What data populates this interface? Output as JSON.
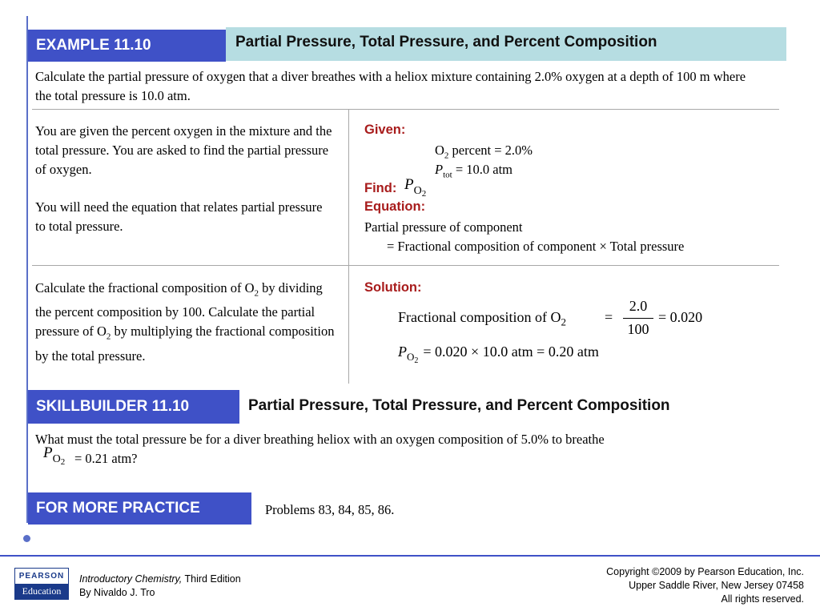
{
  "example": {
    "label": "EXAMPLE 11.10",
    "title": "Partial Pressure, Total Pressure, and Percent Composition",
    "problem": "Calculate the partial pressure of oxygen that a diver breathes with a heliox mixture containing 2.0% oxygen at a depth of 100 m where the total pressure is 10.0 atm."
  },
  "strategy": {
    "left_p1": "You are given the percent oxygen in the mixture and the total pressure. You are asked to find the partial pressure of oxygen.",
    "left_p2": "You will need the equation that relates partial pressure to total pressure.",
    "given_label": "Given:",
    "given_o2_sym": "O",
    "given_o2_sub": "2",
    "given_o2_rest": " percent = 2.0%",
    "given_p_sym": "P",
    "given_p_sub": "tot",
    "given_p_rest": " = 10.0 atm",
    "find_label": "Find:",
    "find_sym": "P",
    "find_sub": "O",
    "find_subsub": "2",
    "equation_label": "Equation:",
    "equation_line1": "Partial pressure of component",
    "equation_line2": "= Fractional composition of component × Total pressure"
  },
  "solution": {
    "left_text_1": "Calculate the fractional composition of O",
    "left_sub_1": "2",
    "left_text_2": "by dividing the percent composition by 100. Calculate the partial pressure of O",
    "left_sub_2": "2",
    "left_text_3": " by multiplying the fractional composition by the total pressure.",
    "solution_label": "Solution:",
    "eq1_left": "Fractional composition of O",
    "eq1_sub": "2",
    "eq1_equals": "=",
    "eq1_num": "2.0",
    "eq1_den": "100",
    "eq1_result": "= 0.020",
    "eq2_sym": "P",
    "eq2_sub": "O",
    "eq2_subsub": "2",
    "eq2_rest": "= 0.020 × 10.0 atm = 0.20 atm"
  },
  "skillbuilder": {
    "label": "SKILLBUILDER 11.10",
    "title": "Partial Pressure, Total Pressure, and Percent Composition",
    "question_1": "What must the total pressure be for a diver breathing heliox with an oxygen composition of 5.0% to breathe",
    "q_sym": "P",
    "q_sub": "O",
    "q_subsub": "2",
    "question_2": " = 0.21 atm?"
  },
  "practice": {
    "label": "FOR MORE PRACTICE",
    "text": "Problems 83, 84, 85, 86."
  },
  "footer": {
    "logo_top": "PEARSON",
    "logo_bottom": "Education",
    "book_title": "Introductory Chemistry,",
    "book_edition": " Third Edition",
    "author": "By Nivaldo J. Tro",
    "copyright_1": "Copyright ©2009 by Pearson Education, Inc.",
    "copyright_2": "Upper Saddle River, New Jersey 07458",
    "copyright_3": "All rights reserved."
  },
  "colors": {
    "accent_blue": "#3f51c7",
    "title_bar": "#b6dde2",
    "label_red": "#a81c1c",
    "pearson_blue": "#1a3a8a"
  }
}
